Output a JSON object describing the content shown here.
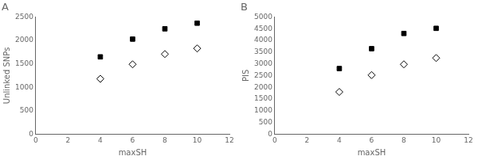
{
  "chart_data": [
    {
      "type": "scatter",
      "title": "A",
      "x_label": "maxSH",
      "y_label": "Unlinked SNPs",
      "xlim": [
        0,
        12
      ],
      "ylim": [
        0,
        2500
      ],
      "xticks": [
        0,
        2,
        4,
        6,
        8,
        10,
        12
      ],
      "yticks": [
        0,
        500,
        1000,
        1500,
        2000,
        2500
      ],
      "grid": false,
      "series": [
        {
          "x": [
            4,
            6,
            8,
            10
          ],
          "values": [
            1650,
            2030,
            2250,
            2370
          ],
          "color": "black",
          "marker": "square"
        },
        {
          "x": [
            4,
            6,
            8,
            10
          ],
          "values": [
            1180,
            1490,
            1710,
            1830
          ],
          "color": "white",
          "marker": "diamond"
        }
      ]
    },
    {
      "type": "scatter",
      "title": "B",
      "x_label": "maxSH",
      "y_label": "PIS",
      "xlim": [
        0,
        12
      ],
      "ylim": [
        0,
        5000
      ],
      "xticks": [
        0,
        2,
        4,
        6,
        8,
        10,
        12
      ],
      "yticks": [
        0,
        500,
        1000,
        1500,
        2000,
        2500,
        3000,
        3500,
        4000,
        4500,
        5000
      ],
      "grid": false,
      "series": [
        {
          "x": [
            4,
            6,
            8,
            10
          ],
          "values": [
            2800,
            3650,
            4300,
            4520
          ],
          "color": "black",
          "marker": "square"
        },
        {
          "x": [
            4,
            6,
            8,
            10
          ],
          "values": [
            1800,
            2520,
            2980,
            3250
          ],
          "color": "white",
          "marker": "diamond"
        }
      ]
    }
  ]
}
